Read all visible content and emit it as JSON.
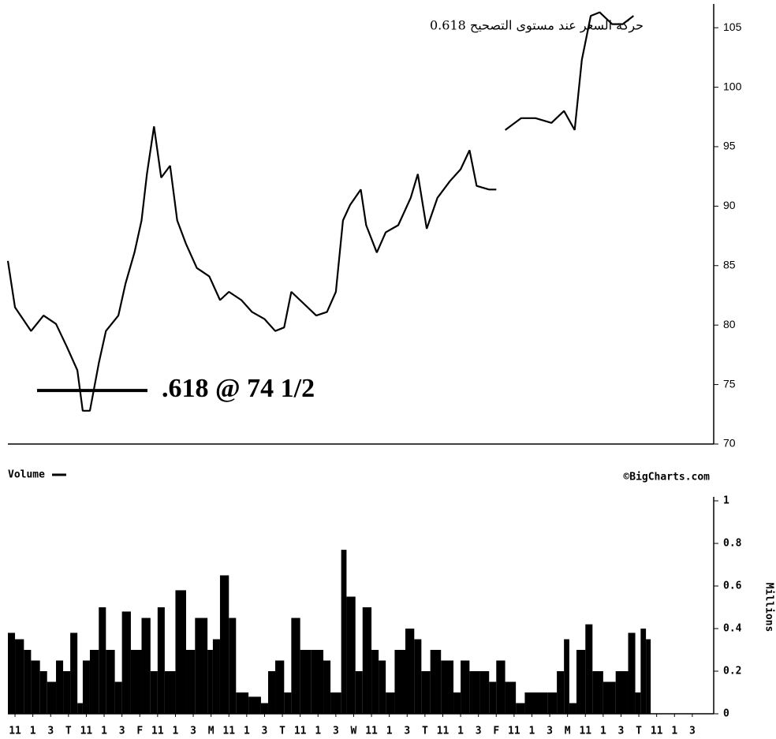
{
  "chart_data": [
    {
      "type": "line",
      "title": "حركة السعر عند مستوى التصحيح    0.618",
      "annotation": {
        "text": ".618 @ 74 1/2",
        "value": 74.5
      },
      "color": "#000000",
      "x": [
        -0.4,
        0.0,
        0.9,
        1.6,
        2.3,
        2.9,
        3.5,
        3.8,
        4.2,
        4.7,
        5.1,
        5.8,
        6.2,
        6.7,
        7.1,
        7.4,
        7.8,
        8.2,
        8.7,
        9.1,
        9.6,
        10.2,
        10.9,
        11.5,
        12.0,
        12.7,
        13.3,
        14.0,
        14.6,
        15.1,
        15.5,
        16.2,
        16.9,
        17.5,
        18.0,
        18.4,
        18.8,
        19.4,
        19.7,
        20.3,
        20.8,
        21.5,
        22.2,
        22.6,
        23.1,
        23.7,
        24.4,
        25.0,
        25.5,
        25.9,
        26.6,
        27.0,
        27.3,
        27.5,
        28.4,
        29.2,
        30.1,
        30.8,
        31.4,
        31.8,
        32.3,
        32.8,
        33.5,
        34.1,
        34.7
      ],
      "values": [
        85.4,
        81.5,
        79.5,
        80.8,
        80.1,
        78.2,
        76.2,
        72.8,
        72.8,
        76.8,
        79.5,
        80.8,
        83.5,
        86.1,
        88.8,
        92.7,
        96.7,
        92.4,
        93.4,
        88.8,
        86.8,
        84.8,
        84.1,
        82.1,
        82.8,
        82.1,
        81.1,
        80.5,
        79.5,
        79.8,
        82.8,
        81.8,
        80.8,
        81.1,
        82.8,
        88.8,
        90.1,
        91.4,
        88.4,
        86.1,
        87.8,
        88.4,
        90.7,
        92.7,
        88.1,
        90.7,
        92.1,
        93.1,
        94.7,
        91.7,
        91.4,
        91.4,
        null,
        96.4,
        97.4,
        97.4,
        97.0,
        98.0,
        96.4,
        102.3,
        106.0,
        106.3,
        105.3,
        105.3,
        106.0
      ],
      "xlim": [
        -0.4,
        39.2
      ],
      "ylim": [
        70,
        107
      ],
      "yticks": [
        70,
        75,
        80,
        85,
        90,
        95,
        100,
        105
      ]
    },
    {
      "type": "bar",
      "legend": "Volume",
      "source": "©BigCharts.com",
      "ylabel": "Millions",
      "color": "#000000",
      "x": [
        -0.4,
        0.0,
        0.5,
        0.9,
        1.4,
        1.8,
        2.3,
        2.7,
        3.1,
        3.5,
        3.8,
        4.2,
        4.7,
        5.1,
        5.6,
        6.0,
        6.5,
        7.1,
        7.6,
        8.0,
        8.4,
        9.0,
        9.6,
        10.1,
        10.8,
        11.1,
        11.5,
        12.0,
        12.4,
        13.1,
        13.8,
        14.2,
        14.6,
        15.1,
        15.5,
        16.0,
        16.6,
        17.3,
        17.7,
        18.3,
        18.6,
        19.1,
        19.5,
        20.0,
        20.4,
        20.8,
        21.3,
        21.9,
        22.4,
        22.8,
        23.3,
        23.9,
        24.6,
        25.0,
        25.5,
        26.1,
        26.6,
        27.0,
        27.5,
        28.1,
        28.6,
        29.2,
        29.9,
        30.4,
        30.8,
        31.1,
        31.5,
        32.0,
        32.4,
        33.0,
        33.7,
        34.4,
        34.8,
        35.1,
        35.4
      ],
      "values": [
        0.38,
        0.35,
        0.3,
        0.25,
        0.2,
        0.15,
        0.25,
        0.2,
        0.38,
        0.05,
        0.25,
        0.3,
        0.5,
        0.3,
        0.15,
        0.48,
        0.3,
        0.45,
        0.2,
        0.5,
        0.2,
        0.58,
        0.3,
        0.45,
        0.3,
        0.35,
        0.65,
        0.45,
        0.1,
        0.08,
        0.05,
        0.2,
        0.25,
        0.1,
        0.45,
        0.3,
        0.3,
        0.25,
        0.1,
        0.77,
        0.55,
        0.2,
        0.5,
        0.3,
        0.25,
        0.1,
        0.3,
        0.4,
        0.35,
        0.2,
        0.3,
        0.25,
        0.1,
        0.25,
        0.2,
        0.2,
        0.15,
        0.25,
        0.15,
        0.05,
        0.1,
        0.1,
        0.1,
        0.2,
        0.35,
        0.05,
        0.3,
        0.42,
        0.2,
        0.15,
        0.2,
        0.38,
        0.1,
        0.4,
        0.35
      ],
      "xlim": [
        -0.4,
        39.2
      ],
      "xticks": [
        {
          "value": 0,
          "label": "11"
        },
        {
          "value": 1,
          "label": "1"
        },
        {
          "value": 2,
          "label": "3"
        },
        {
          "value": 3,
          "label": "T"
        },
        {
          "value": 4,
          "label": "11"
        },
        {
          "value": 5,
          "label": "1"
        },
        {
          "value": 6,
          "label": "3"
        },
        {
          "value": 7,
          "label": "F"
        },
        {
          "value": 8,
          "label": "11"
        },
        {
          "value": 9,
          "label": "1"
        },
        {
          "value": 10,
          "label": "3"
        },
        {
          "value": 11,
          "label": "M"
        },
        {
          "value": 12,
          "label": "11"
        },
        {
          "value": 13,
          "label": "1"
        },
        {
          "value": 14,
          "label": "3"
        },
        {
          "value": 15,
          "label": "T"
        },
        {
          "value": 16,
          "label": "11"
        },
        {
          "value": 17,
          "label": "1"
        },
        {
          "value": 18,
          "label": "3"
        },
        {
          "value": 19,
          "label": "W"
        },
        {
          "value": 20,
          "label": "11"
        },
        {
          "value": 21,
          "label": "1"
        },
        {
          "value": 22,
          "label": "3"
        },
        {
          "value": 23,
          "label": "T"
        },
        {
          "value": 24,
          "label": "11"
        },
        {
          "value": 25,
          "label": "1"
        },
        {
          "value": 26,
          "label": "3"
        },
        {
          "value": 27,
          "label": "F"
        },
        {
          "value": 28,
          "label": "11"
        },
        {
          "value": 29,
          "label": "1"
        },
        {
          "value": 30,
          "label": "3"
        },
        {
          "value": 31,
          "label": "M"
        },
        {
          "value": 32,
          "label": "11"
        },
        {
          "value": 33,
          "label": "1"
        },
        {
          "value": 34,
          "label": "3"
        },
        {
          "value": 35,
          "label": "T"
        },
        {
          "value": 36,
          "label": "11"
        },
        {
          "value": 37,
          "label": "1"
        },
        {
          "value": 38,
          "label": "3"
        }
      ],
      "ylim": [
        0,
        1
      ],
      "yticks": [
        0,
        0.2,
        0.4,
        0.6,
        0.8,
        1
      ]
    }
  ]
}
